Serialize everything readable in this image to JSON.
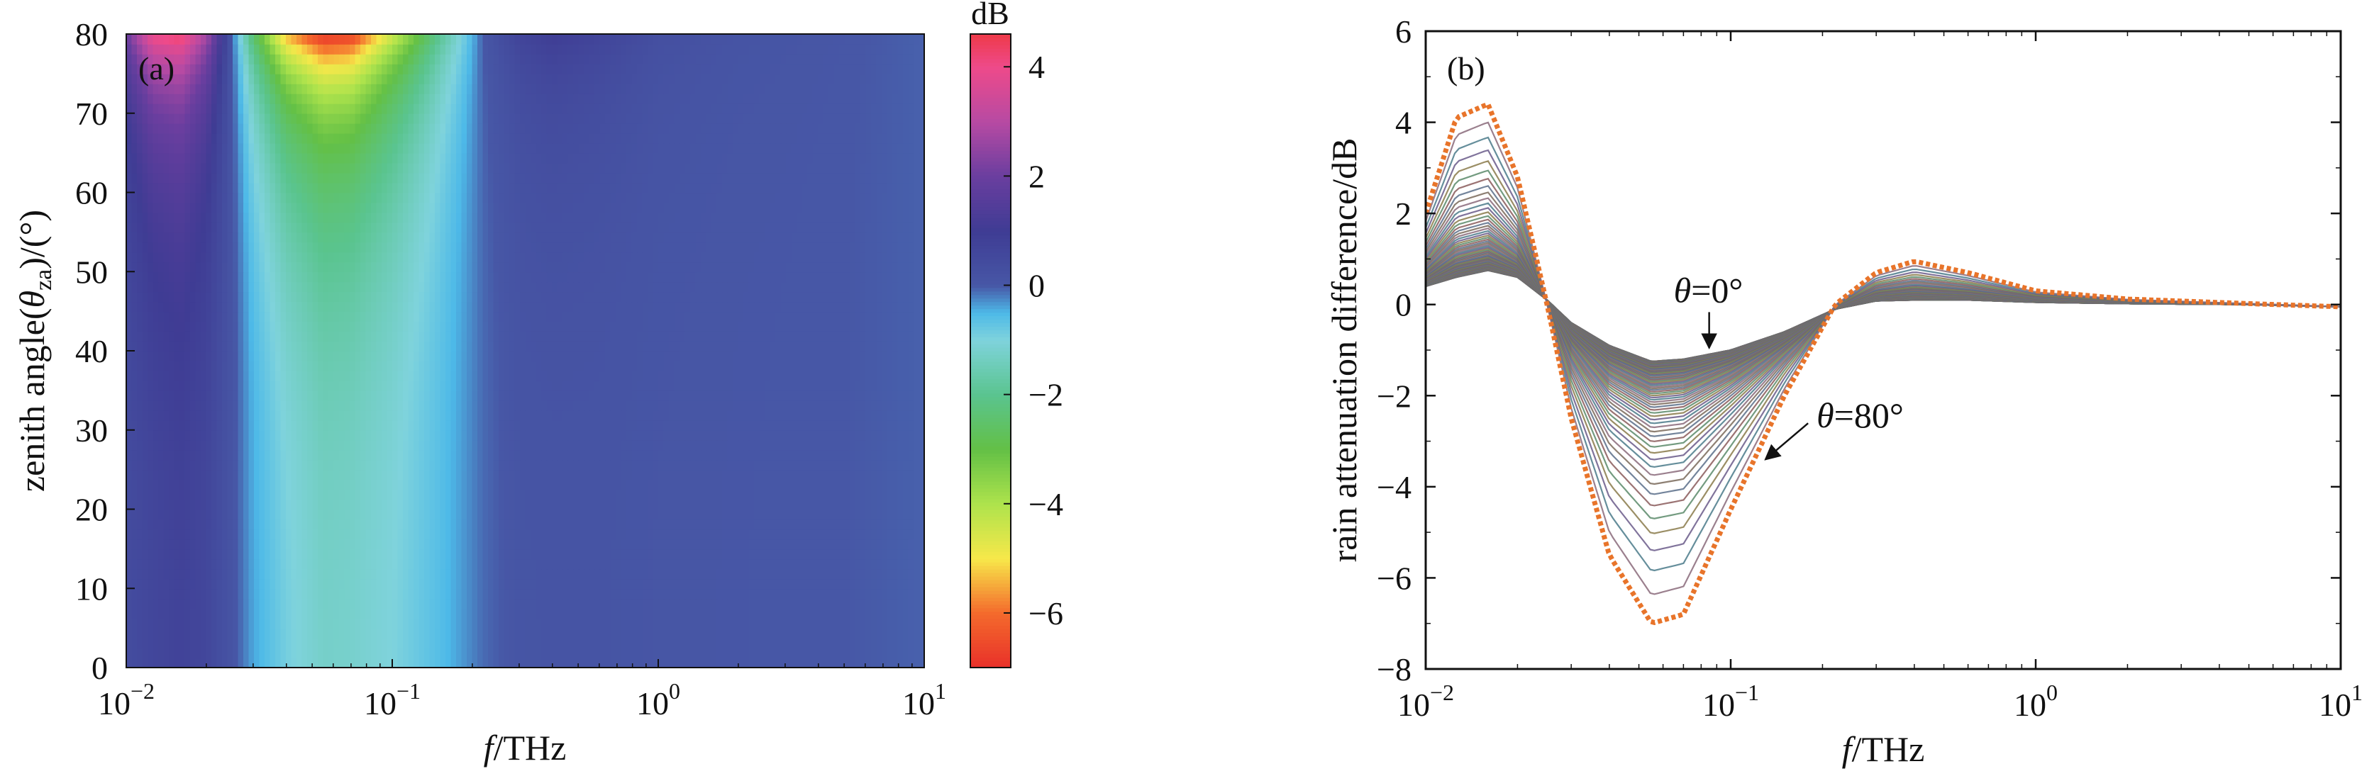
{
  "chart_data": [
    {
      "panel": "(a)",
      "type": "heatmap",
      "xlabel_f": "f",
      "xlabel_unit": "/THz",
      "ylabel_prefix": "zenith angle(",
      "ylabel_theta": "θ",
      "ylabel_sub": "za",
      "ylabel_suffix": ")/(°)",
      "xscale": "log",
      "xlim": [
        0.01,
        10
      ],
      "ylim": [
        0,
        80
      ],
      "x_ticks": [
        {
          "value": 0.01,
          "base": "10",
          "exp": "−2"
        },
        {
          "value": 0.1,
          "base": "10",
          "exp": "−1"
        },
        {
          "value": 1,
          "base": "10",
          "exp": "0"
        },
        {
          "value": 10,
          "base": "10",
          "exp": "1"
        }
      ],
      "y_ticks": [
        0,
        10,
        20,
        30,
        40,
        50,
        60,
        70,
        80
      ],
      "colorbar": {
        "label": "dB",
        "range": [
          -7,
          4.6
        ],
        "ticks": [
          4,
          2,
          0,
          -2,
          -4,
          -6
        ],
        "tick_labels": [
          "4",
          "2",
          "0",
          "−2",
          "−4",
          "−6"
        ],
        "colors": [
          [
            -7,
            "#e8302a"
          ],
          [
            -6,
            "#f46a2c"
          ],
          [
            -5,
            "#f7e84a"
          ],
          [
            -4,
            "#aee34c"
          ],
          [
            -3,
            "#63c046"
          ],
          [
            -2,
            "#5ac48f"
          ],
          [
            -1,
            "#7fd3dc"
          ],
          [
            -0.5,
            "#4db9e8"
          ],
          [
            0,
            "#4757a6"
          ],
          [
            1,
            "#3f3c94"
          ],
          [
            2,
            "#6a3e9f"
          ],
          [
            3,
            "#b74aa3"
          ],
          [
            4,
            "#ee4a8a"
          ],
          [
            4.6,
            "#ee3a4a"
          ]
        ]
      },
      "model_difference": {
        "description": "rain attenuation difference (dB) vs frequency and zenith angle θ",
        "f_THz": [
          0.01,
          0.0126,
          0.016,
          0.02,
          0.025,
          0.03,
          0.04,
          0.055,
          0.07,
          0.1,
          0.15,
          0.22,
          0.3,
          0.4,
          0.6,
          1.0,
          2.0,
          5.0,
          10.0
        ],
        "at_0deg": [
          0.4,
          0.6,
          0.75,
          0.6,
          0.1,
          -0.4,
          -0.9,
          -1.25,
          -1.2,
          -1.0,
          -0.6,
          -0.1,
          0.08,
          0.1,
          0.1,
          0.05,
          0.02,
          0.0,
          -0.05
        ],
        "at_80deg": [
          2.0,
          4.1,
          4.4,
          2.8,
          0.0,
          -2.5,
          -5.5,
          -7.0,
          -6.8,
          -4.5,
          -2.0,
          0.0,
          0.7,
          0.95,
          0.7,
          0.3,
          0.12,
          0.02,
          -0.05
        ]
      }
    },
    {
      "panel": "(b)",
      "type": "line",
      "xlabel_f": "f",
      "xlabel_unit": "/THz",
      "ylabel": "rain attenuation difference/dB",
      "xscale": "log",
      "xlim": [
        0.01,
        10
      ],
      "ylim": [
        -8,
        6
      ],
      "x_ticks": [
        {
          "value": 0.01,
          "base": "10",
          "exp": "−2"
        },
        {
          "value": 0.1,
          "base": "10",
          "exp": "−1"
        },
        {
          "value": 1,
          "base": "10",
          "exp": "0"
        },
        {
          "value": 10,
          "base": "10",
          "exp": "1"
        }
      ],
      "y_ticks": [
        6,
        4,
        2,
        0,
        -2,
        -4,
        -6,
        -8
      ],
      "y_tick_labels": [
        "6",
        "4",
        "2",
        "0",
        "−2",
        "−4",
        "−6",
        "−8"
      ],
      "series_count": 81,
      "series_range_deg": [
        0,
        80
      ],
      "annotations": [
        {
          "theta": "θ",
          "text": "=0°",
          "x": 0.085,
          "y": 0.3,
          "arrow_to": [
            0.085,
            -0.95
          ]
        },
        {
          "theta": "θ",
          "text": "=80°",
          "x": 0.25,
          "y": -2.45,
          "arrow_to": [
            0.13,
            -3.4
          ]
        }
      ],
      "x": [
        0.01,
        0.0126,
        0.016,
        0.02,
        0.025,
        0.03,
        0.04,
        0.055,
        0.07,
        0.1,
        0.15,
        0.22,
        0.3,
        0.4,
        0.6,
        1.0,
        2.0,
        5.0,
        10.0
      ],
      "series": [
        {
          "label": "θ=0°",
          "values": [
            0.4,
            0.6,
            0.75,
            0.6,
            0.1,
            -0.4,
            -0.9,
            -1.25,
            -1.2,
            -1.0,
            -0.6,
            -0.1,
            0.08,
            0.1,
            0.1,
            0.05,
            0.02,
            0.0,
            -0.05
          ]
        },
        {
          "label": "θ=80°",
          "values": [
            2.0,
            4.1,
            4.4,
            2.8,
            0.0,
            -2.5,
            -5.5,
            -7.0,
            -6.8,
            -4.5,
            -2.0,
            0.0,
            0.7,
            0.95,
            0.7,
            0.3,
            0.12,
            0.02,
            -0.05
          ]
        }
      ],
      "envelope_color": "#e8742a"
    }
  ]
}
